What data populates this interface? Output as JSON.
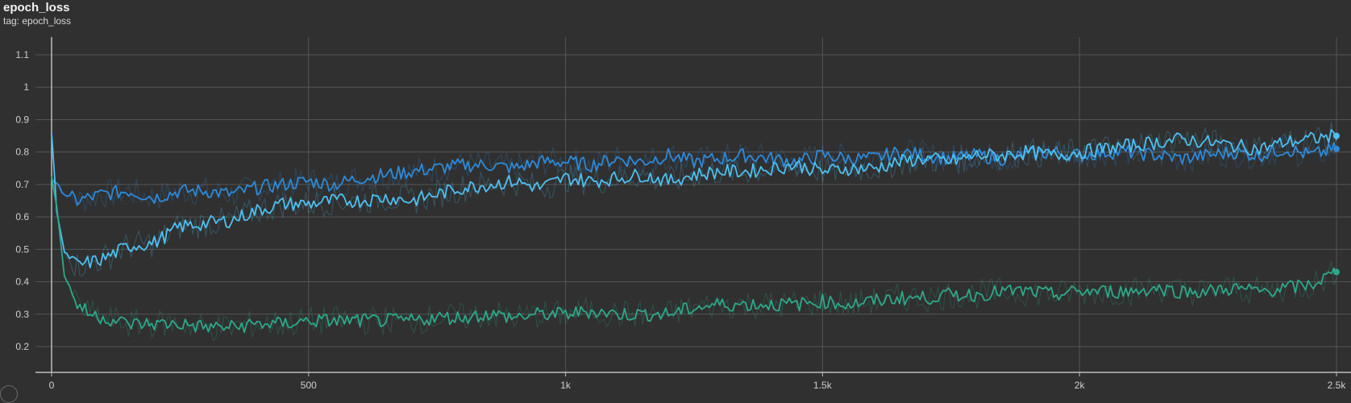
{
  "card": {
    "title": "epoch_loss",
    "subtitle": "tag: epoch_loss"
  },
  "chart_data": {
    "type": "line",
    "title": "epoch_loss",
    "subtitle": "tag: epoch_loss",
    "xlabel": "",
    "ylabel": "",
    "xlim": [
      -10,
      2510
    ],
    "ylim": [
      0.14,
      1.16
    ],
    "x_ticks": [
      {
        "value": 0,
        "label": "0"
      },
      {
        "value": 500,
        "label": "500"
      },
      {
        "value": 1000,
        "label": "1k"
      },
      {
        "value": 1500,
        "label": "1.5k"
      },
      {
        "value": 2000,
        "label": "2k"
      },
      {
        "value": 2500,
        "label": "2.5k"
      }
    ],
    "y_ticks": [
      {
        "value": 0.2,
        "label": "0.2"
      },
      {
        "value": 0.3,
        "label": "0.3"
      },
      {
        "value": 0.4,
        "label": "0.4"
      },
      {
        "value": 0.5,
        "label": "0.5"
      },
      {
        "value": 0.6,
        "label": "0.6"
      },
      {
        "value": 0.7,
        "label": "0.7"
      },
      {
        "value": 0.8,
        "label": "0.8"
      },
      {
        "value": 0.9,
        "label": "0.9"
      },
      {
        "value": 1.0,
        "label": "1"
      },
      {
        "value": 1.1,
        "label": "1.1"
      }
    ],
    "grid": true,
    "legend": "none",
    "series": [
      {
        "color": "#2e8ad8",
        "x": [
          0,
          25,
          50,
          100,
          150,
          200,
          250,
          300,
          350,
          400,
          450,
          500,
          550,
          600,
          650,
          700,
          750,
          800,
          850,
          900,
          950,
          1000,
          1050,
          1100,
          1150,
          1200,
          1250,
          1300,
          1350,
          1400,
          1450,
          1500,
          1550,
          1600,
          1650,
          1700,
          1750,
          1800,
          1850,
          1900,
          1950,
          2000,
          2050,
          2100,
          2150,
          2200,
          2250,
          2300,
          2350,
          2400,
          2450,
          2500
        ],
        "y": [
          0.72,
          0.67,
          0.65,
          0.67,
          0.68,
          0.66,
          0.68,
          0.68,
          0.67,
          0.69,
          0.7,
          0.71,
          0.7,
          0.72,
          0.73,
          0.74,
          0.75,
          0.76,
          0.76,
          0.75,
          0.77,
          0.77,
          0.76,
          0.78,
          0.77,
          0.79,
          0.77,
          0.78,
          0.79,
          0.78,
          0.77,
          0.79,
          0.78,
          0.78,
          0.8,
          0.79,
          0.78,
          0.79,
          0.78,
          0.79,
          0.8,
          0.79,
          0.8,
          0.8,
          0.79,
          0.78,
          0.79,
          0.8,
          0.79,
          0.81,
          0.79,
          0.81
        ]
      },
      {
        "color": "#4fc0f0",
        "x": [
          0,
          10,
          25,
          50,
          100,
          150,
          200,
          250,
          300,
          350,
          400,
          450,
          500,
          550,
          600,
          650,
          700,
          750,
          800,
          850,
          900,
          950,
          1000,
          1050,
          1100,
          1150,
          1200,
          1250,
          1300,
          1350,
          1400,
          1450,
          1500,
          1550,
          1600,
          1650,
          1700,
          1750,
          1800,
          1850,
          1900,
          1950,
          2000,
          2050,
          2100,
          2150,
          2200,
          2250,
          2300,
          2350,
          2400,
          2450,
          2500
        ],
        "y": [
          0.86,
          0.62,
          0.49,
          0.45,
          0.47,
          0.51,
          0.52,
          0.57,
          0.58,
          0.59,
          0.62,
          0.64,
          0.64,
          0.65,
          0.65,
          0.66,
          0.65,
          0.67,
          0.69,
          0.7,
          0.71,
          0.69,
          0.72,
          0.71,
          0.72,
          0.73,
          0.71,
          0.73,
          0.74,
          0.74,
          0.75,
          0.76,
          0.74,
          0.75,
          0.75,
          0.77,
          0.78,
          0.77,
          0.79,
          0.79,
          0.8,
          0.79,
          0.8,
          0.81,
          0.82,
          0.83,
          0.84,
          0.83,
          0.82,
          0.81,
          0.83,
          0.84,
          0.85
        ]
      },
      {
        "color": "#2ea88a",
        "x": [
          0,
          10,
          25,
          50,
          75,
          100,
          150,
          200,
          250,
          300,
          350,
          400,
          450,
          500,
          550,
          600,
          650,
          700,
          750,
          800,
          850,
          900,
          950,
          1000,
          1050,
          1100,
          1150,
          1200,
          1250,
          1300,
          1350,
          1400,
          1450,
          1500,
          1550,
          1600,
          1650,
          1700,
          1750,
          1800,
          1850,
          1900,
          1950,
          2000,
          2050,
          2100,
          2150,
          2200,
          2250,
          2300,
          2350,
          2400,
          2450,
          2500
        ],
        "y": [
          0.73,
          0.63,
          0.42,
          0.33,
          0.3,
          0.29,
          0.27,
          0.27,
          0.27,
          0.26,
          0.26,
          0.27,
          0.27,
          0.28,
          0.28,
          0.28,
          0.28,
          0.28,
          0.29,
          0.29,
          0.3,
          0.29,
          0.3,
          0.3,
          0.31,
          0.3,
          0.3,
          0.3,
          0.32,
          0.33,
          0.33,
          0.33,
          0.33,
          0.34,
          0.33,
          0.34,
          0.35,
          0.35,
          0.36,
          0.36,
          0.37,
          0.37,
          0.36,
          0.37,
          0.37,
          0.37,
          0.38,
          0.37,
          0.37,
          0.38,
          0.37,
          0.38,
          0.39,
          0.43
        ]
      }
    ]
  }
}
